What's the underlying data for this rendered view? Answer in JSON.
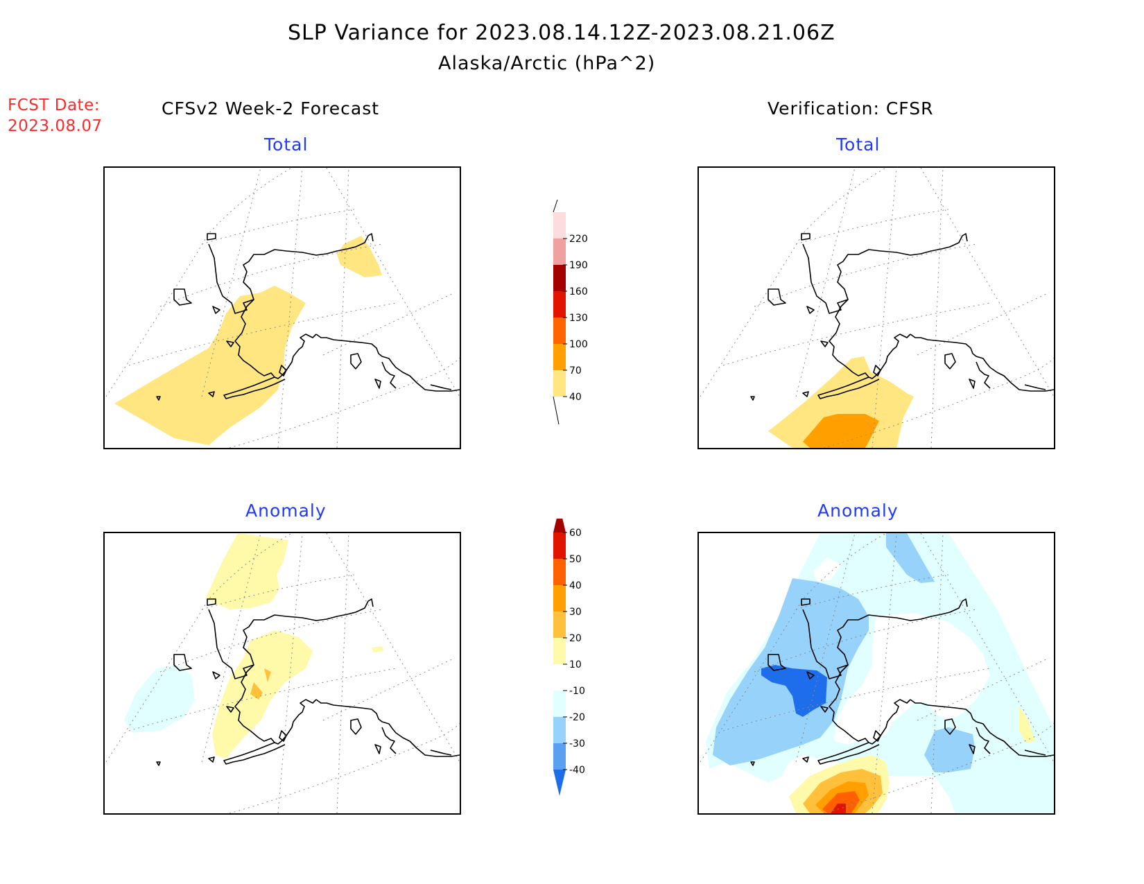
{
  "title": "SLP Variance for 2023.08.14.12Z-2023.08.21.06Z",
  "subtitle": "Alaska/Arctic (hPa^2)",
  "fcst_date": {
    "label": "FCST Date:",
    "value": "2023.08.07"
  },
  "columns": {
    "left": "CFSv2 Week-2 Forecast",
    "right": "Verification: CFSR"
  },
  "panels": {
    "top_left": "Total",
    "top_right": "Total",
    "bottom_left": "Anomaly",
    "bottom_right": "Anomaly"
  },
  "colorbars": {
    "total": {
      "ticks": [
        "40",
        "70",
        "100",
        "130",
        "160",
        "190",
        "220"
      ],
      "colors": [
        "#ffe680",
        "#ffa000",
        "#ff6400",
        "#e11400",
        "#a50000",
        "#f0a0a0",
        "#fcdcdc"
      ]
    },
    "anomaly": {
      "ticks": [
        "-40",
        "-30",
        "-20",
        "-10",
        "10",
        "20",
        "30",
        "40",
        "50",
        "60"
      ],
      "colors": [
        "#1e6eeb",
        "#5aa0f0",
        "#96d2fa",
        "#e1ffff",
        "#ffffff",
        "#fffaaa",
        "#ffc03c",
        "#ffa000",
        "#ff6000",
        "#e11400",
        "#a50000"
      ]
    }
  }
}
